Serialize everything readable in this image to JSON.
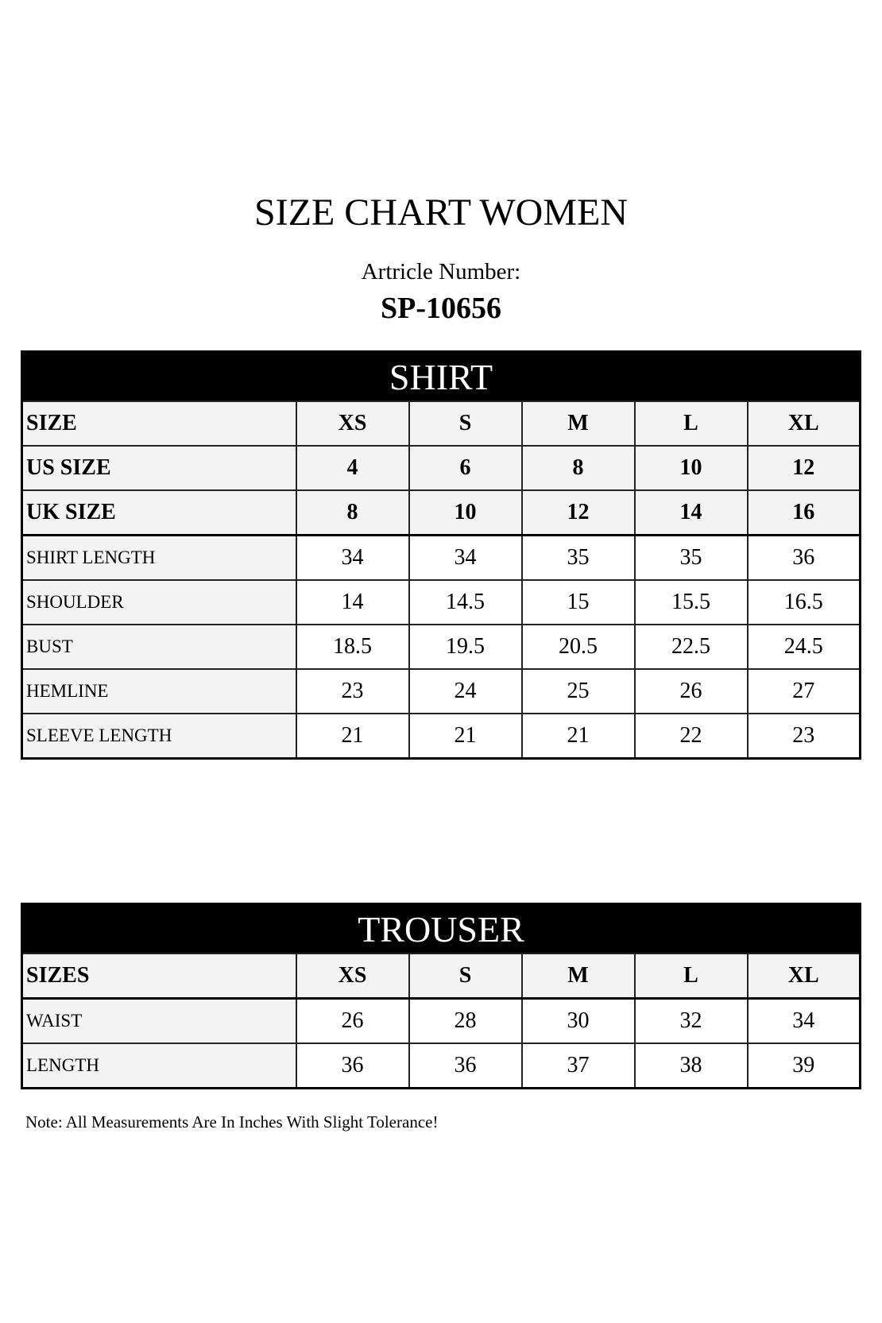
{
  "title": "SIZE CHART WOMEN",
  "article_label": "Artricle Number:",
  "article_number": "SP-10656",
  "shirt": {
    "heading": "SHIRT",
    "header_rows": [
      {
        "label": "SIZE",
        "values": [
          "XS",
          "S",
          "M",
          "L",
          "XL"
        ]
      },
      {
        "label": "US SIZE",
        "values": [
          "4",
          "6",
          "8",
          "10",
          "12"
        ]
      },
      {
        "label": "UK SIZE",
        "values": [
          "8",
          "10",
          "12",
          "14",
          "16"
        ]
      }
    ],
    "rows": [
      {
        "label": "SHIRT LENGTH",
        "values": [
          "34",
          "34",
          "35",
          "35",
          "36"
        ]
      },
      {
        "label": "SHOULDER",
        "values": [
          "14",
          "14.5",
          "15",
          "15.5",
          "16.5"
        ]
      },
      {
        "label": "BUST",
        "values": [
          "18.5",
          "19.5",
          "20.5",
          "22.5",
          "24.5"
        ]
      },
      {
        "label": "HEMLINE",
        "values": [
          "23",
          "24",
          "25",
          "26",
          "27"
        ]
      },
      {
        "label": "SLEEVE LENGTH",
        "values": [
          "21",
          "21",
          "21",
          "22",
          "23"
        ]
      }
    ]
  },
  "trouser": {
    "heading": "TROUSER",
    "header_rows": [
      {
        "label": "SIZES",
        "values": [
          "XS",
          "S",
          "M",
          "L",
          "XL"
        ]
      }
    ],
    "rows": [
      {
        "label": "WAIST",
        "values": [
          "26",
          "28",
          "30",
          "32",
          "34"
        ]
      },
      {
        "label": "LENGTH",
        "values": [
          "36",
          "36",
          "37",
          "38",
          "39"
        ]
      }
    ]
  },
  "note": "Note: All Measurements Are In Inches With Slight Tolerance!"
}
